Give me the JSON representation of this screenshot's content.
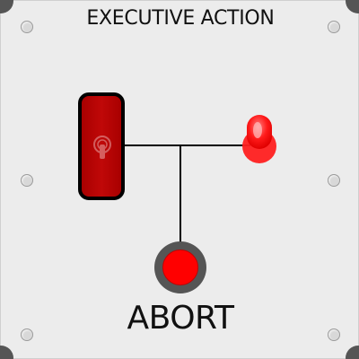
{
  "panel": {
    "title": "EXECUTIVE ACTION",
    "abort_label": "ABORT"
  },
  "controls": {
    "toggle_switch": {
      "icon": "toggle-switch-icon",
      "color": "#b00000",
      "state": "off"
    },
    "indicator_light": {
      "icon": "indicator-lamp-icon",
      "color": "#ff2020",
      "state": "on"
    },
    "abort_button": {
      "icon": "push-button-icon",
      "color": "#ff0000"
    }
  },
  "colors": {
    "panel": "#ececec",
    "corner": "#555555",
    "wire": "#000000",
    "button_ring": "#555555"
  }
}
